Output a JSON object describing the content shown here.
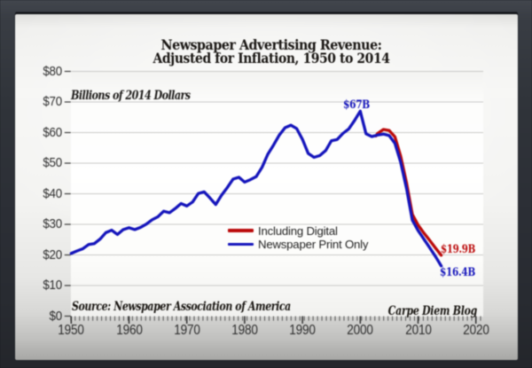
{
  "title": {
    "line1": "Newspaper Advertising Revenue:",
    "line2": "Adjusted for Inflation, 1950 to 2014"
  },
  "plot_note": "Billions of 2014 Dollars",
  "source_note": "Source: Newspaper Association of America",
  "credit": "Carpe Diem Blog",
  "legend": [
    {
      "label": "Including Digital",
      "color": "#bb0a0a"
    },
    {
      "label": "Newspaper Print Only",
      "color": "#1414bb"
    }
  ],
  "annotations": {
    "peak": {
      "text": "$67B",
      "color": "#1414bb"
    },
    "red_end": {
      "text": "$19.9B",
      "color": "#bb0a0a"
    },
    "blue_end": {
      "text": "$16.4B",
      "color": "#1414bb"
    }
  },
  "colors": {
    "red_line": "#bb0a0a",
    "blue_line": "#1414bb",
    "gridline": "#c9c9c7",
    "tick": "#3a3a3a"
  },
  "y_axis": {
    "labels": [
      "$0",
      "$10",
      "$20",
      "$30",
      "$40",
      "$50",
      "$60",
      "$70",
      "$80"
    ],
    "min": 0,
    "max": 80,
    "step": 10
  },
  "x_axis": {
    "labels": [
      "1950",
      "1960",
      "1970",
      "1980",
      "1990",
      "2000",
      "2010",
      "2020"
    ],
    "min": 1950,
    "step": 10
  },
  "chart_data": {
    "type": "line",
    "title": "Newspaper Advertising Revenue: Adjusted for Inflation, 1950 to 2014",
    "ylabel": "Billions of 2014 Dollars",
    "xlim": [
      1950,
      2021.3
    ],
    "ylim": [
      0,
      80
    ],
    "grid": "horizontal",
    "legend_position": "center",
    "series": [
      {
        "name": "Including Digital",
        "color": "#bb0a0a",
        "x": [
          2002.7,
          2003,
          2004,
          2005,
          2006,
          2007,
          2008,
          2009,
          2010,
          2011,
          2012,
          2013,
          2014
        ],
        "values": [
          58.9,
          59.7,
          61.0,
          60.7,
          58.6,
          52.3,
          43.6,
          33.3,
          29.8,
          27.2,
          24.8,
          22.3,
          19.9
        ]
      },
      {
        "name": "Newspaper Print Only",
        "color": "#1414bb",
        "x": [
          1950,
          1951,
          1952,
          1953,
          1954,
          1955,
          1956,
          1957,
          1958,
          1959,
          1960,
          1961,
          1962,
          1963,
          1964,
          1965,
          1966,
          1967,
          1968,
          1969,
          1970,
          1971,
          1972,
          1973,
          1974,
          1975,
          1976,
          1977,
          1978,
          1979,
          1980,
          1981,
          1982,
          1983,
          1984,
          1985,
          1986,
          1987,
          1988,
          1989,
          1990,
          1991,
          1992,
          1993,
          1994,
          1995,
          1996,
          1997,
          1998,
          1999,
          2000,
          2001,
          2002,
          2003,
          2004,
          2005,
          2006,
          2007,
          2008,
          2009,
          2010,
          2011,
          2012,
          2013,
          2014
        ],
        "values": [
          20.5,
          21.3,
          22.0,
          23.4,
          23.7,
          25.2,
          27.3,
          28.1,
          26.7,
          28.3,
          28.9,
          28.3,
          29.0,
          30.1,
          31.5,
          32.5,
          34.3,
          33.8,
          35.2,
          36.8,
          36.0,
          37.3,
          40.1,
          40.6,
          38.6,
          36.5,
          39.5,
          42.0,
          44.8,
          45.4,
          43.8,
          44.6,
          45.6,
          48.6,
          52.9,
          55.9,
          59.2,
          61.6,
          62.4,
          61.3,
          57.8,
          53.2,
          51.9,
          52.5,
          54.1,
          57.3,
          57.7,
          59.7,
          61.2,
          63.9,
          67.0,
          59.6,
          58.7,
          59.2,
          59.5,
          59.0,
          56.5,
          50.3,
          41.7,
          31.4,
          28.0,
          25.2,
          22.4,
          19.5,
          16.4
        ]
      }
    ]
  }
}
